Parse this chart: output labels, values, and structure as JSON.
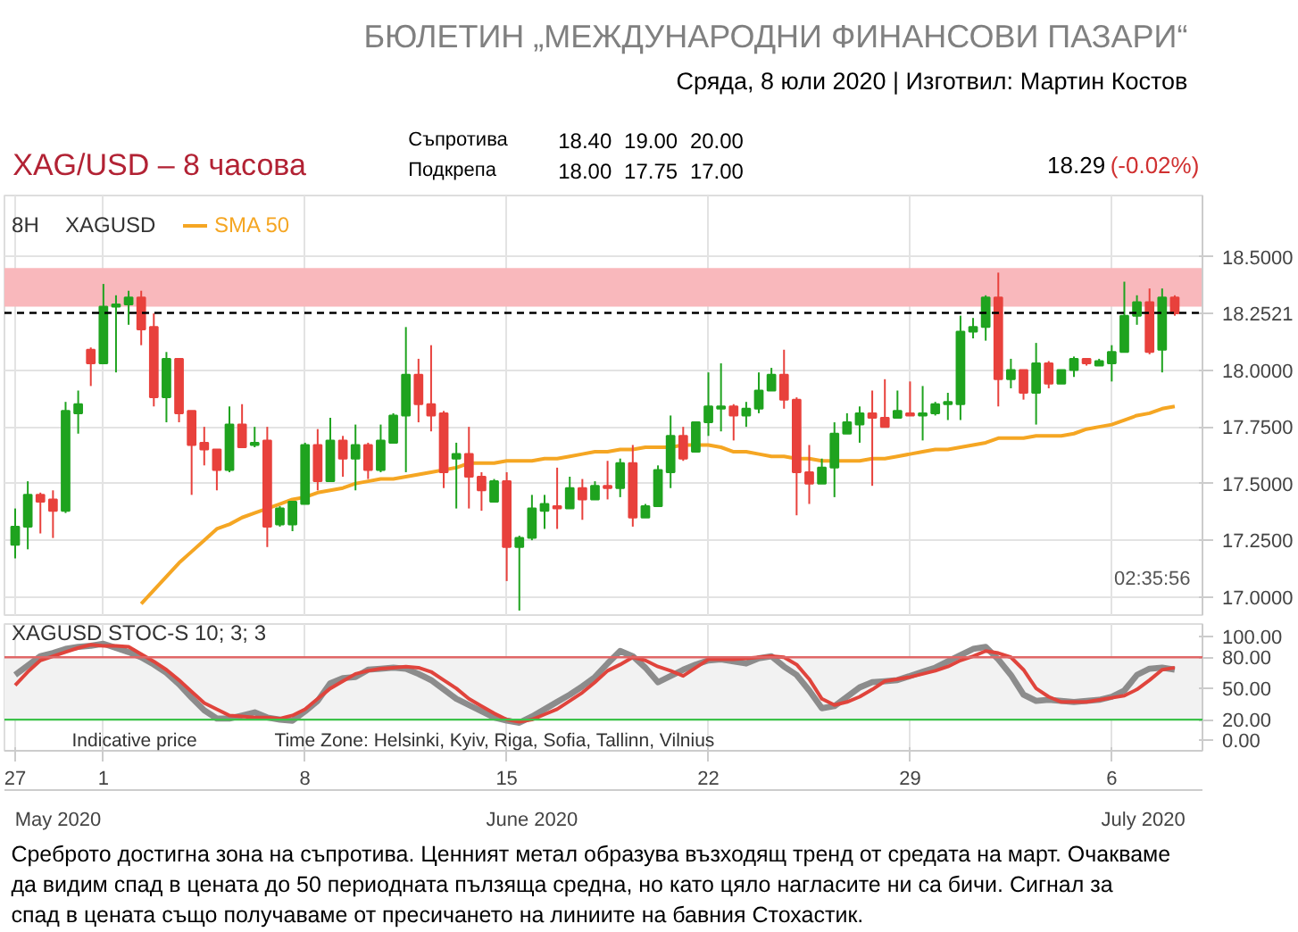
{
  "chart_data": [
    {
      "type": "other",
      "title": "БЮЛЕТИН „МЕЖДУНАРОДНИ ФИНАНСОВИ ПАЗАРИ“",
      "subtitle": "Сряда, 8 юли 2020 | Изготвил: Мартин Костов",
      "annotations": [
        "XAG/USD – 8 часова",
        "Съпротива",
        "18.40",
        "19.00",
        "20.00",
        "Подкрепа",
        "18.00",
        "17.75",
        "17.00",
        "18.29",
        "(-0.02%)"
      ]
    },
    {
      "type": "candlestick",
      "categories": [
        "27",
        null,
        null,
        null,
        null,
        null,
        null,
        "1",
        null,
        null,
        null,
        null,
        null,
        null,
        null,
        null,
        null,
        null,
        null,
        null,
        null,
        null,
        null,
        "8",
        null,
        null,
        null,
        null,
        null,
        null,
        null,
        null,
        null,
        null,
        null,
        null,
        null,
        null,
        null,
        "15",
        null,
        null,
        null,
        null,
        null,
        null,
        null,
        null,
        null,
        null,
        null,
        null,
        null,
        null,
        null,
        "22",
        null,
        null,
        null,
        null,
        null,
        null,
        null,
        null,
        null,
        null,
        null,
        null,
        null,
        null,
        null,
        "29",
        null,
        null,
        null,
        null,
        null,
        null,
        null,
        null,
        null,
        null,
        null,
        null,
        null,
        null,
        null,
        "6",
        null,
        null,
        null,
        null,
        null
      ],
      "ohlc": [
        [
          17.23,
          17.39,
          17.17,
          17.31
        ],
        [
          17.31,
          17.51,
          17.21,
          17.45
        ],
        [
          17.45,
          17.46,
          17.28,
          17.42
        ],
        [
          17.43,
          17.47,
          17.26,
          17.38
        ],
        [
          17.38,
          17.86,
          17.37,
          17.82
        ],
        [
          17.81,
          17.91,
          17.72,
          17.85
        ],
        [
          18.09,
          18.1,
          17.93,
          18.03
        ],
        [
          18.03,
          18.38,
          18.03,
          18.28
        ],
        [
          18.28,
          18.33,
          17.99,
          18.29
        ],
        [
          18.29,
          18.35,
          18.2,
          18.32
        ],
        [
          18.32,
          18.35,
          18.11,
          18.18
        ],
        [
          18.19,
          18.25,
          17.84,
          17.88
        ],
        [
          17.88,
          18.08,
          17.77,
          18.05
        ],
        [
          18.05,
          18.05,
          17.77,
          17.81
        ],
        [
          17.82,
          17.82,
          17.45,
          17.67
        ],
        [
          17.68,
          17.75,
          17.58,
          17.65
        ],
        [
          17.65,
          17.65,
          17.47,
          17.56
        ],
        [
          17.56,
          17.84,
          17.55,
          17.76
        ],
        [
          17.76,
          17.85,
          17.66,
          17.66
        ],
        [
          17.67,
          17.75,
          17.66,
          17.68
        ],
        [
          17.69,
          17.75,
          17.22,
          17.31
        ],
        [
          17.32,
          17.4,
          17.31,
          17.39
        ],
        [
          17.32,
          17.42,
          17.29,
          17.42
        ],
        [
          17.41,
          17.68,
          17.41,
          17.67
        ],
        [
          17.67,
          17.74,
          17.47,
          17.51
        ],
        [
          17.51,
          17.79,
          17.51,
          17.69
        ],
        [
          17.69,
          17.71,
          17.53,
          17.61
        ],
        [
          17.61,
          17.76,
          17.47,
          17.67
        ],
        [
          17.67,
          17.68,
          17.52,
          17.56
        ],
        [
          17.56,
          17.76,
          17.55,
          17.69
        ],
        [
          17.68,
          17.81,
          17.68,
          17.8
        ],
        [
          17.8,
          18.19,
          17.55,
          17.98
        ],
        [
          17.98,
          18.05,
          17.77,
          17.85
        ],
        [
          17.85,
          18.11,
          17.73,
          17.8
        ],
        [
          17.81,
          17.82,
          17.48,
          17.55
        ],
        [
          17.61,
          17.68,
          17.39,
          17.63
        ],
        [
          17.63,
          17.75,
          17.39,
          17.53
        ],
        [
          17.53,
          17.55,
          17.38,
          17.47
        ],
        [
          17.42,
          17.52,
          17.42,
          17.51
        ],
        [
          17.51,
          17.55,
          17.07,
          17.22
        ],
        [
          17.22,
          17.27,
          16.94,
          17.26
        ],
        [
          17.26,
          17.45,
          17.25,
          17.39
        ],
        [
          17.38,
          17.45,
          17.3,
          17.41
        ],
        [
          17.4,
          17.57,
          17.3,
          17.39
        ],
        [
          17.39,
          17.53,
          17.39,
          17.48
        ],
        [
          17.48,
          17.52,
          17.34,
          17.43
        ],
        [
          17.43,
          17.51,
          17.43,
          17.49
        ],
        [
          17.49,
          17.6,
          17.43,
          17.48
        ],
        [
          17.48,
          17.61,
          17.44,
          17.59
        ],
        [
          17.59,
          17.67,
          17.31,
          17.35
        ],
        [
          17.35,
          17.41,
          17.35,
          17.4
        ],
        [
          17.4,
          17.58,
          17.4,
          17.56
        ],
        [
          17.55,
          17.8,
          17.48,
          17.71
        ],
        [
          17.71,
          17.75,
          17.6,
          17.61
        ],
        [
          17.64,
          17.77,
          17.64,
          17.77
        ],
        [
          17.77,
          17.99,
          17.71,
          17.84
        ],
        [
          17.83,
          18.03,
          17.73,
          17.84
        ],
        [
          17.84,
          17.85,
          17.69,
          17.8
        ],
        [
          17.8,
          17.86,
          17.75,
          17.83
        ],
        [
          17.83,
          17.99,
          17.81,
          17.91
        ],
        [
          17.91,
          18.01,
          17.91,
          17.98
        ],
        [
          17.98,
          18.09,
          17.83,
          17.87
        ],
        [
          17.87,
          17.88,
          17.36,
          17.55
        ],
        [
          17.55,
          17.67,
          17.41,
          17.5
        ],
        [
          17.5,
          17.61,
          17.5,
          17.57
        ],
        [
          17.57,
          17.77,
          17.44,
          17.72
        ],
        [
          17.72,
          17.81,
          17.72,
          17.77
        ],
        [
          17.76,
          17.84,
          17.68,
          17.81
        ],
        [
          17.81,
          17.91,
          17.49,
          17.79
        ],
        [
          17.79,
          17.96,
          17.75,
          17.75
        ],
        [
          17.79,
          17.91,
          17.79,
          17.82
        ],
        [
          17.81,
          17.95,
          17.8,
          17.8
        ],
        [
          17.8,
          17.93,
          17.69,
          17.81
        ],
        [
          17.81,
          17.86,
          17.8,
          17.85
        ],
        [
          17.85,
          17.9,
          17.78,
          17.86
        ],
        [
          17.85,
          18.24,
          17.78,
          18.17
        ],
        [
          18.17,
          18.23,
          18.14,
          18.19
        ],
        [
          18.19,
          18.33,
          18.13,
          18.32
        ],
        [
          18.32,
          18.43,
          17.84,
          17.96
        ],
        [
          17.96,
          18.05,
          17.92,
          18.0
        ],
        [
          18.0,
          18.0,
          17.87,
          17.9
        ],
        [
          17.9,
          18.12,
          17.76,
          18.03
        ],
        [
          18.03,
          18.04,
          17.92,
          17.94
        ],
        [
          17.94,
          18.0,
          17.94,
          18.0
        ],
        [
          18.0,
          18.06,
          17.97,
          18.05
        ],
        [
          18.05,
          18.05,
          18.02,
          18.03
        ],
        [
          18.02,
          18.05,
          18.02,
          18.04
        ],
        [
          18.03,
          18.11,
          17.95,
          18.08
        ],
        [
          18.08,
          18.39,
          18.08,
          18.24
        ],
        [
          18.24,
          18.33,
          18.2,
          18.3
        ],
        [
          18.3,
          18.36,
          18.07,
          18.08
        ],
        [
          18.09,
          18.36,
          17.99,
          18.32
        ],
        [
          18.32,
          18.33,
          18.24,
          18.25
        ]
      ],
      "colors": [
        "#1fa31f",
        "#1fa31f",
        "#e8413c",
        "#e8413c",
        "#1fa31f",
        "#1fa31f",
        "#e8413c",
        "#1fa31f",
        "#1fa31f",
        "#1fa31f",
        "#e8413c",
        "#e8413c",
        "#1fa31f",
        "#e8413c",
        "#e8413c",
        "#e8413c",
        "#e8413c",
        "#1fa31f",
        "#e8413c",
        "#1fa31f",
        "#e8413c",
        "#1fa31f",
        "#1fa31f",
        "#1fa31f",
        "#e8413c",
        "#1fa31f",
        "#e8413c",
        "#1fa31f",
        "#e8413c",
        "#1fa31f",
        "#1fa31f",
        "#1fa31f",
        "#e8413c",
        "#e8413c",
        "#e8413c",
        "#1fa31f",
        "#e8413c",
        "#e8413c",
        "#1fa31f",
        "#e8413c",
        "#1fa31f",
        "#1fa31f",
        "#1fa31f",
        "#e8413c",
        "#1fa31f",
        "#e8413c",
        "#1fa31f",
        "#e8413c",
        "#1fa31f",
        "#e8413c",
        "#1fa31f",
        "#1fa31f",
        "#1fa31f",
        "#e8413c",
        "#1fa31f",
        "#1fa31f",
        "#1fa31f",
        "#e8413c",
        "#1fa31f",
        "#1fa31f",
        "#1fa31f",
        "#e8413c",
        "#e8413c",
        "#e8413c",
        "#1fa31f",
        "#1fa31f",
        "#1fa31f",
        "#1fa31f",
        "#e8413c",
        "#e8413c",
        "#1fa31f",
        "#e8413c",
        "#1fa31f",
        "#1fa31f",
        "#1fa31f",
        "#1fa31f",
        "#1fa31f",
        "#1fa31f",
        "#e8413c",
        "#1fa31f",
        "#e8413c",
        "#1fa31f",
        "#e8413c",
        "#1fa31f",
        "#1fa31f",
        "#e8413c",
        "#1fa31f",
        "#1fa31f",
        "#1fa31f",
        "#1fa31f",
        "#e8413c",
        "#1fa31f",
        "#e8413c"
      ],
      "series": [
        {
          "name": "SMA 50",
          "type": "line",
          "color": "#f5a623",
          "values": [
            null,
            null,
            null,
            null,
            null,
            null,
            null,
            null,
            null,
            null,
            16.97,
            17.03,
            17.09,
            17.15,
            17.2,
            17.25,
            17.3,
            17.32,
            17.35,
            17.37,
            17.39,
            17.41,
            17.43,
            17.44,
            17.46,
            17.47,
            17.48,
            17.5,
            17.51,
            17.52,
            17.52,
            17.53,
            17.54,
            17.55,
            17.56,
            17.57,
            17.59,
            17.59,
            17.59,
            17.6,
            17.6,
            17.6,
            17.61,
            17.61,
            17.62,
            17.63,
            17.64,
            17.64,
            17.65,
            17.65,
            17.66,
            17.66,
            17.66,
            17.67,
            17.67,
            17.67,
            17.66,
            17.64,
            17.64,
            17.63,
            17.62,
            17.62,
            17.61,
            17.61,
            17.6,
            17.6,
            17.6,
            17.6,
            17.61,
            17.61,
            17.62,
            17.63,
            17.64,
            17.65,
            17.65,
            17.66,
            17.67,
            17.68,
            17.7,
            17.7,
            17.7,
            17.71,
            17.71,
            17.71,
            17.72,
            17.74,
            17.75,
            17.76,
            17.78,
            17.8,
            17.81,
            17.83,
            17.84
          ]
        }
      ],
      "ylim": [
        16.92,
        18.77
      ],
      "yticks": [
        {
          "value": 17,
          "label": "17.0000"
        },
        {
          "value": 17.25,
          "label": "17.2500"
        },
        {
          "value": 17.5,
          "label": "17.5000"
        },
        {
          "value": 17.75,
          "label": "17.7500"
        },
        {
          "value": 18,
          "label": "18.0000"
        },
        {
          "value": 18.5,
          "label": "18.5000"
        }
      ],
      "tick_labels": "y",
      "grid": true,
      "legend": "top left",
      "bands": [
        {
          "axis": "y",
          "from": 18.28,
          "to": 18.45,
          "color": "#f9b8bc"
        }
      ],
      "ref_lines": [
        {
          "axis": "y",
          "value": 18.2521,
          "label": "18.2521",
          "color": "#000000",
          "line_style": "dashed"
        }
      ],
      "annotations": [
        "8H",
        "XAGUSD",
        "02:35:56"
      ]
    },
    {
      "type": "line",
      "series": [
        {
          "color": "#8c8c8c",
          "values": [
            63,
            72,
            81,
            84,
            88,
            90,
            91,
            93,
            89,
            85,
            80,
            73,
            65,
            54,
            41,
            29,
            21,
            21,
            24,
            27,
            22,
            20,
            19,
            28,
            38,
            55,
            60,
            61,
            68,
            69,
            70,
            69,
            64,
            58,
            49,
            40,
            34,
            28,
            22,
            19,
            17,
            23,
            30,
            37,
            44,
            52,
            61,
            74,
            86,
            81,
            70,
            56,
            62,
            68,
            73,
            77,
            78,
            76,
            74,
            79,
            81,
            71,
            63,
            48,
            31,
            33,
            42,
            51,
            56,
            57,
            58,
            62,
            66,
            70,
            76,
            82,
            88,
            90,
            78,
            63,
            44,
            38,
            39,
            38,
            37,
            38,
            39,
            42,
            48,
            63,
            69,
            70,
            68
          ]
        },
        {
          "color": "#e0443c",
          "values": [
            53,
            66,
            77,
            81,
            85,
            89,
            92,
            91,
            91,
            90,
            83,
            76,
            68,
            58,
            47,
            36,
            30,
            24,
            23,
            22,
            22,
            21,
            24,
            30,
            40,
            50,
            57,
            64,
            67,
            69,
            70,
            71,
            70,
            66,
            58,
            50,
            40,
            33,
            26,
            20,
            18,
            20,
            25,
            30,
            38,
            46,
            56,
            67,
            73,
            80,
            77,
            71,
            67,
            62,
            70,
            78,
            78,
            78,
            79,
            80,
            81,
            80,
            73,
            59,
            40,
            34,
            37,
            42,
            49,
            57,
            59,
            61,
            64,
            67,
            71,
            77,
            81,
            86,
            84,
            80,
            68,
            50,
            42,
            37,
            37,
            37,
            39,
            41,
            43,
            49,
            58,
            68,
            70
          ]
        }
      ],
      "categories": [
        "27",
        null,
        null,
        null,
        null,
        null,
        null,
        "1",
        null,
        null,
        null,
        null,
        null,
        null,
        null,
        null,
        null,
        null,
        null,
        null,
        null,
        null,
        null,
        "8",
        null,
        null,
        null,
        null,
        null,
        null,
        null,
        null,
        null,
        null,
        null,
        null,
        null,
        null,
        null,
        "15",
        null,
        null,
        null,
        null,
        null,
        null,
        null,
        null,
        null,
        null,
        null,
        null,
        null,
        null,
        null,
        "22",
        null,
        null,
        null,
        null,
        null,
        null,
        null,
        null,
        null,
        null,
        null,
        null,
        null,
        null,
        null,
        "29",
        null,
        null,
        null,
        null,
        null,
        null,
        null,
        null,
        null,
        null,
        null,
        null,
        null,
        null,
        null,
        "6",
        null,
        null,
        null,
        null,
        null
      ],
      "ylim": [
        -10,
        112
      ],
      "yticks": [
        {
          "value": 0,
          "label": "0.00"
        },
        {
          "value": 20,
          "label": "20.00"
        },
        {
          "value": 50,
          "label": "50.00"
        },
        {
          "value": 80,
          "label": "80.00"
        },
        {
          "value": 100,
          "label": "100.00"
        }
      ],
      "grid": "x",
      "bands": [
        {
          "axis": "y",
          "from": 20,
          "to": 80,
          "color": "#f2f2f2"
        }
      ],
      "ref_lines": [
        {
          "axis": "y",
          "value": 80,
          "color": "#e06666"
        },
        {
          "axis": "y",
          "value": 20,
          "color": "#3cc24a"
        }
      ],
      "annotations": [
        "XAGUSD STOC-S 10; 3; 3",
        "Indicative price",
        "Time Zone: Helsinki, Kyiv, Riga, Sofia, Tallinn, Vilnius",
        "May 2020",
        "June 2020",
        "July 2020"
      ]
    },
    {
      "type": "other",
      "annotations": [
        "Среброто достигна зона на съпротива. Ценният метал образува възходящ тренд от средата на март. Очакваме да видим спад в цената до 50 периодната пълзяща средна, но като цяло нагласите ни са бичи. Сигнал за спад в цената също получаваме от пресичането на линиите на бавния Стохастик."
      ]
    }
  ]
}
